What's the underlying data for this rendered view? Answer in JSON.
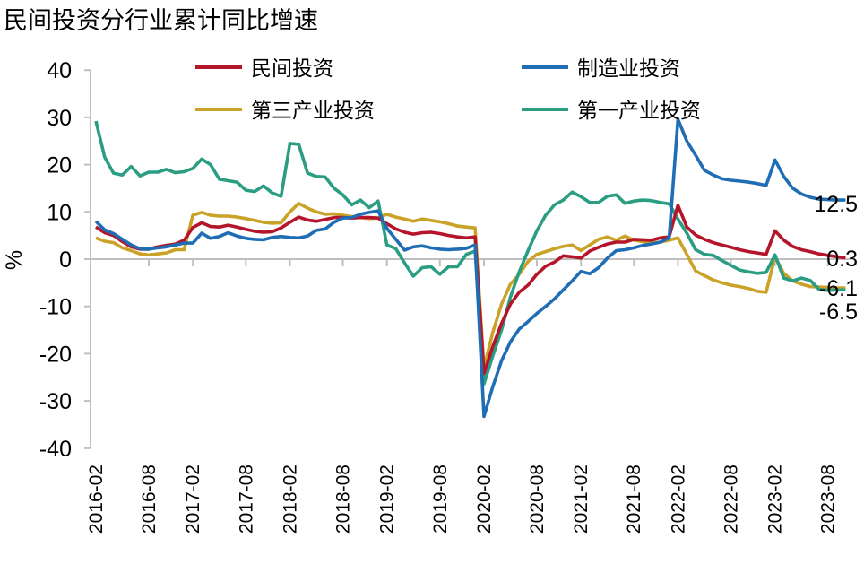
{
  "chart_data": {
    "type": "line",
    "title": "民间投资分行业累计同比增速",
    "ylabel": "%",
    "xlabel": "",
    "ylim": [
      -40,
      40
    ],
    "yticks": [
      40,
      30,
      20,
      10,
      0,
      -10,
      -20,
      -30,
      -40
    ],
    "grid": false,
    "legend_position": "top",
    "xtick_labels": [
      "2016-02",
      "2016-08",
      "2017-02",
      "2017-08",
      "2018-02",
      "2018-08",
      "2019-02",
      "2019-08",
      "2020-02",
      "2020-08",
      "2021-02",
      "2021-08",
      "2022-02",
      "2022-08",
      "2023-02",
      "2023-08"
    ],
    "categories": [
      "2016-02",
      "2016-03",
      "2016-04",
      "2016-05",
      "2016-06",
      "2016-07",
      "2016-08",
      "2016-09",
      "2016-10",
      "2016-11",
      "2016-12",
      "2017-02",
      "2017-03",
      "2017-04",
      "2017-05",
      "2017-06",
      "2017-07",
      "2017-08",
      "2017-09",
      "2017-10",
      "2017-11",
      "2017-12",
      "2018-02",
      "2018-03",
      "2018-04",
      "2018-05",
      "2018-06",
      "2018-07",
      "2018-08",
      "2018-09",
      "2018-10",
      "2018-11",
      "2018-12",
      "2019-02",
      "2019-03",
      "2019-04",
      "2019-05",
      "2019-06",
      "2019-07",
      "2019-08",
      "2019-09",
      "2019-10",
      "2019-11",
      "2019-12",
      "2020-02",
      "2020-03",
      "2020-04",
      "2020-05",
      "2020-06",
      "2020-07",
      "2020-08",
      "2020-09",
      "2020-10",
      "2020-11",
      "2020-12",
      "2021-02",
      "2021-03",
      "2021-04",
      "2021-05",
      "2021-06",
      "2021-07",
      "2021-08",
      "2021-09",
      "2021-10",
      "2021-11",
      "2021-12",
      "2022-02",
      "2022-03",
      "2022-04",
      "2022-05",
      "2022-06",
      "2022-07",
      "2022-08",
      "2022-09",
      "2022-10",
      "2022-11",
      "2022-12",
      "2023-02",
      "2023-03",
      "2023-04",
      "2023-05",
      "2023-06",
      "2023-07",
      "2023-08",
      "2023-09",
      "2023-10"
    ],
    "series": [
      {
        "name": "民间投资",
        "color": "#B5152B",
        "end_label": "0.3",
        "values": [
          6.8,
          5.6,
          5.0,
          3.7,
          2.6,
          2.1,
          2.1,
          2.6,
          2.9,
          3.2,
          4.0,
          6.7,
          7.7,
          6.9,
          6.8,
          7.2,
          6.8,
          6.3,
          5.9,
          5.7,
          5.8,
          6.6,
          7.8,
          8.9,
          8.3,
          8.0,
          8.4,
          8.8,
          8.8,
          8.7,
          8.8,
          8.8,
          8.7,
          7.5,
          6.4,
          5.7,
          5.3,
          5.6,
          5.7,
          5.4,
          5.0,
          4.7,
          4.5,
          4.7,
          -24.2,
          -18.5,
          -13.6,
          -9.5,
          -7.0,
          -5.5,
          -3.2,
          -1.5,
          -0.6,
          0.7,
          0.5,
          0.2,
          1.7,
          2.5,
          3.2,
          3.6,
          3.6,
          4.2,
          4.1,
          4.0,
          4.5,
          4.7,
          11.4,
          6.8,
          5.1,
          4.2,
          3.5,
          3.0,
          2.5,
          2.0,
          1.6,
          1.3,
          1.0,
          6.0,
          4.0,
          2.7,
          2.0,
          1.6,
          1.1,
          0.8,
          0.5,
          0.3
        ]
      },
      {
        "name": "制造业投资",
        "color": "#1F6DB5",
        "end_label": "12.5",
        "values": [
          8.0,
          6.2,
          5.4,
          4.2,
          3.0,
          2.2,
          2.1,
          2.4,
          2.6,
          3.0,
          3.4,
          3.4,
          5.5,
          4.4,
          4.8,
          5.6,
          4.9,
          4.4,
          4.2,
          4.1,
          4.6,
          4.8,
          4.6,
          4.5,
          4.9,
          6.1,
          6.4,
          7.8,
          8.7,
          8.8,
          9.5,
          9.9,
          10.2,
          6.5,
          4.2,
          1.9,
          2.6,
          2.8,
          2.4,
          2.1,
          2.0,
          2.1,
          2.3,
          3.0,
          -33.3,
          -27.0,
          -21.5,
          -17.5,
          -14.8,
          -13.2,
          -11.5,
          -10.0,
          -8.4,
          -6.5,
          -4.6,
          -2.6,
          -3.1,
          -1.8,
          0.2,
          1.8,
          2.0,
          2.4,
          2.9,
          3.2,
          3.6,
          4.5,
          29.6,
          25.0,
          22.0,
          18.8,
          17.8,
          17.0,
          16.7,
          16.5,
          16.3,
          16.0,
          15.6,
          21.0,
          17.5,
          15.0,
          13.8,
          13.1,
          12.7,
          12.6,
          12.5,
          12.5
        ]
      },
      {
        "name": "第三产业投资",
        "color": "#C9A227",
        "end_label": "-6.1",
        "values": [
          4.5,
          3.8,
          3.5,
          2.4,
          1.8,
          1.1,
          0.9,
          1.1,
          1.3,
          2.0,
          2.0,
          9.3,
          9.9,
          9.3,
          9.1,
          9.1,
          8.9,
          8.6,
          8.2,
          7.8,
          7.6,
          7.7,
          10.0,
          11.8,
          10.8,
          10.0,
          9.5,
          9.6,
          9.3,
          9.0,
          8.8,
          8.6,
          8.7,
          9.5,
          8.9,
          8.5,
          8.0,
          8.5,
          8.2,
          7.9,
          7.5,
          7.0,
          6.8,
          6.6,
          -23.0,
          -15.5,
          -9.5,
          -5.3,
          -3.2,
          -0.5,
          1.0,
          1.6,
          2.2,
          2.7,
          3.0,
          1.8,
          3.0,
          4.2,
          4.7,
          4.0,
          4.9,
          4.0,
          3.7,
          3.4,
          3.6,
          4.0,
          4.5,
          1.0,
          -2.5,
          -3.5,
          -4.4,
          -5.0,
          -5.5,
          -5.8,
          -6.2,
          -6.8,
          -7.0,
          0.5,
          -3.0,
          -4.6,
          -5.3,
          -5.8,
          -5.9,
          -6.0,
          -6.1,
          -6.1
        ]
      },
      {
        "name": "第一产业投资",
        "color": "#2A9D82",
        "end_label": "-6.5",
        "values": [
          29.2,
          21.6,
          18.2,
          17.8,
          19.6,
          17.6,
          18.4,
          18.4,
          19.0,
          18.3,
          18.5,
          19.2,
          21.2,
          20.0,
          16.9,
          16.6,
          16.3,
          14.6,
          14.3,
          15.5,
          14.0,
          13.3,
          24.5,
          24.3,
          18.2,
          17.5,
          17.4,
          15.0,
          13.6,
          11.5,
          12.5,
          10.9,
          12.3,
          3.0,
          2.2,
          -0.8,
          -3.6,
          -1.8,
          -1.6,
          -3.2,
          -1.6,
          -1.6,
          1.0,
          1.7,
          -26.4,
          -20.5,
          -15.0,
          -8.0,
          -2.7,
          1.8,
          6.0,
          9.3,
          11.5,
          12.5,
          14.2,
          13.2,
          12.0,
          12.0,
          13.3,
          13.6,
          11.8,
          12.3,
          12.5,
          12.4,
          12.0,
          11.7,
          8.5,
          5.5,
          2.0,
          1.0,
          0.8,
          -0.3,
          -1.3,
          -2.3,
          -2.7,
          -3.0,
          -2.8,
          0.9,
          -4.0,
          -4.6,
          -4.0,
          -4.5,
          -6.4,
          -6.6,
          -6.5,
          -6.5
        ]
      }
    ]
  }
}
